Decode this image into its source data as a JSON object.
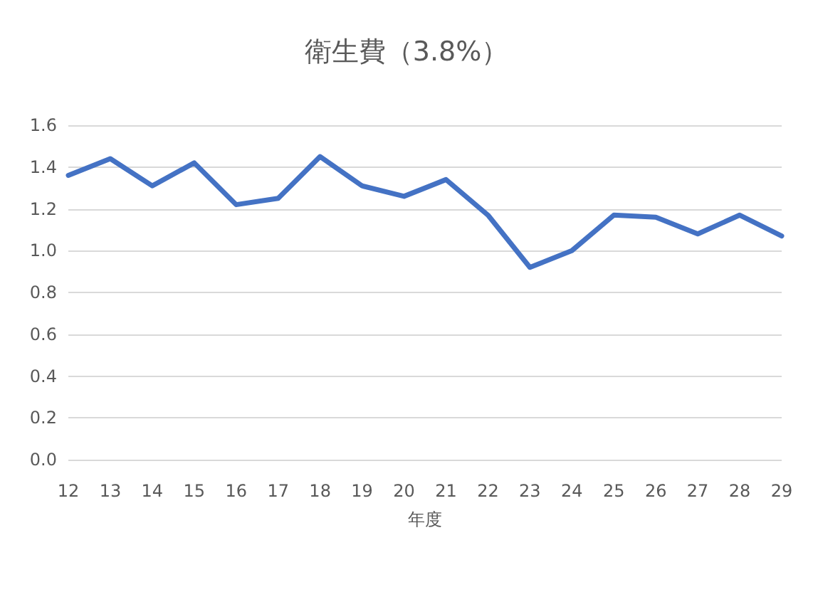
{
  "chart_data": {
    "type": "line",
    "title": "衛生費（3.8%）",
    "xlabel": "年度",
    "categories": [
      "12",
      "13",
      "14",
      "15",
      "16",
      "17",
      "18",
      "19",
      "20",
      "21",
      "22",
      "23",
      "24",
      "25",
      "26",
      "27",
      "28",
      "29"
    ],
    "series": [
      {
        "color": "#4472c4",
        "values": [
          1.36,
          1.44,
          1.31,
          1.42,
          1.22,
          1.25,
          1.45,
          1.31,
          1.26,
          1.34,
          1.17,
          0.92,
          1.0,
          1.17,
          1.16,
          1.08,
          1.17,
          1.07
        ]
      }
    ],
    "ylim": [
      0,
      1.6
    ],
    "yticks": [
      {
        "value": 0,
        "label": "0.0"
      },
      {
        "value": 0.2,
        "label": "0.2"
      },
      {
        "value": 0.4,
        "label": "0.4"
      },
      {
        "value": 0.6,
        "label": "0.6"
      },
      {
        "value": 0.8,
        "label": "0.8"
      },
      {
        "value": 1,
        "label": "1.0"
      },
      {
        "value": 1.2,
        "label": "1.2"
      },
      {
        "value": 1.4,
        "label": "1.4"
      },
      {
        "value": 1.6,
        "label": "1.6"
      }
    ],
    "grid": "y",
    "marker": "none",
    "line_style": "solid"
  }
}
